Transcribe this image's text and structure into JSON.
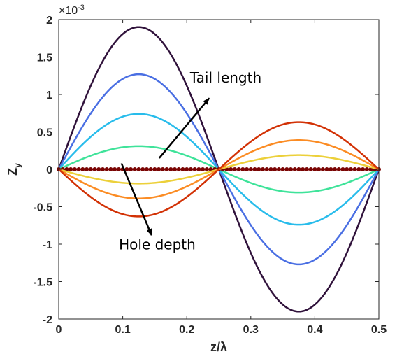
{
  "chart_data": {
    "type": "line",
    "xlabel": "z/λ",
    "ylabel_main": "Z",
    "ylabel_sub": "y",
    "exponent_prefix": "×10",
    "exponent_power": "-3",
    "xlim": [
      0,
      0.5
    ],
    "ylim": [
      -2,
      2
    ],
    "x_ticks": [
      0,
      0.1,
      0.2,
      0.3,
      0.4,
      0.5
    ],
    "x_tick_labels": [
      "0",
      "0.1",
      "0.2",
      "0.3",
      "0.4",
      "0.5"
    ],
    "y_ticks": [
      -2,
      -1.5,
      -1,
      -0.5,
      0,
      0.5,
      1,
      1.5,
      2
    ],
    "y_tick_labels": [
      "-2",
      "-1.5",
      "-1",
      "-0.5",
      "0",
      "0.5",
      "1",
      "1.5",
      "2"
    ],
    "grid": false,
    "series": [
      {
        "amplitude": 1.9,
        "color": "#30123b"
      },
      {
        "amplitude": 1.27,
        "color": "#4a6fe3"
      },
      {
        "amplitude": 0.74,
        "color": "#28bceb"
      },
      {
        "amplitude": 0.31,
        "color": "#3fe39a"
      },
      {
        "amplitude": 0.0,
        "color": "#7a0403",
        "markers": true
      },
      {
        "amplitude": -0.19,
        "color": "#ecd03a"
      },
      {
        "amplitude": -0.39,
        "color": "#fb8c24"
      },
      {
        "amplitude": -0.63,
        "color": "#d23105"
      }
    ],
    "annotations": [
      {
        "text": "Tail length",
        "x": 0.205,
        "y": 1.16,
        "arrow_from": [
          0.157,
          0.15
        ],
        "arrow_to": [
          0.235,
          0.95
        ]
      },
      {
        "text": "Hole depth",
        "x": 0.094,
        "y": -1.07,
        "arrow_from": [
          0.098,
          0.08
        ],
        "arrow_to": [
          0.145,
          -0.88
        ]
      }
    ]
  }
}
